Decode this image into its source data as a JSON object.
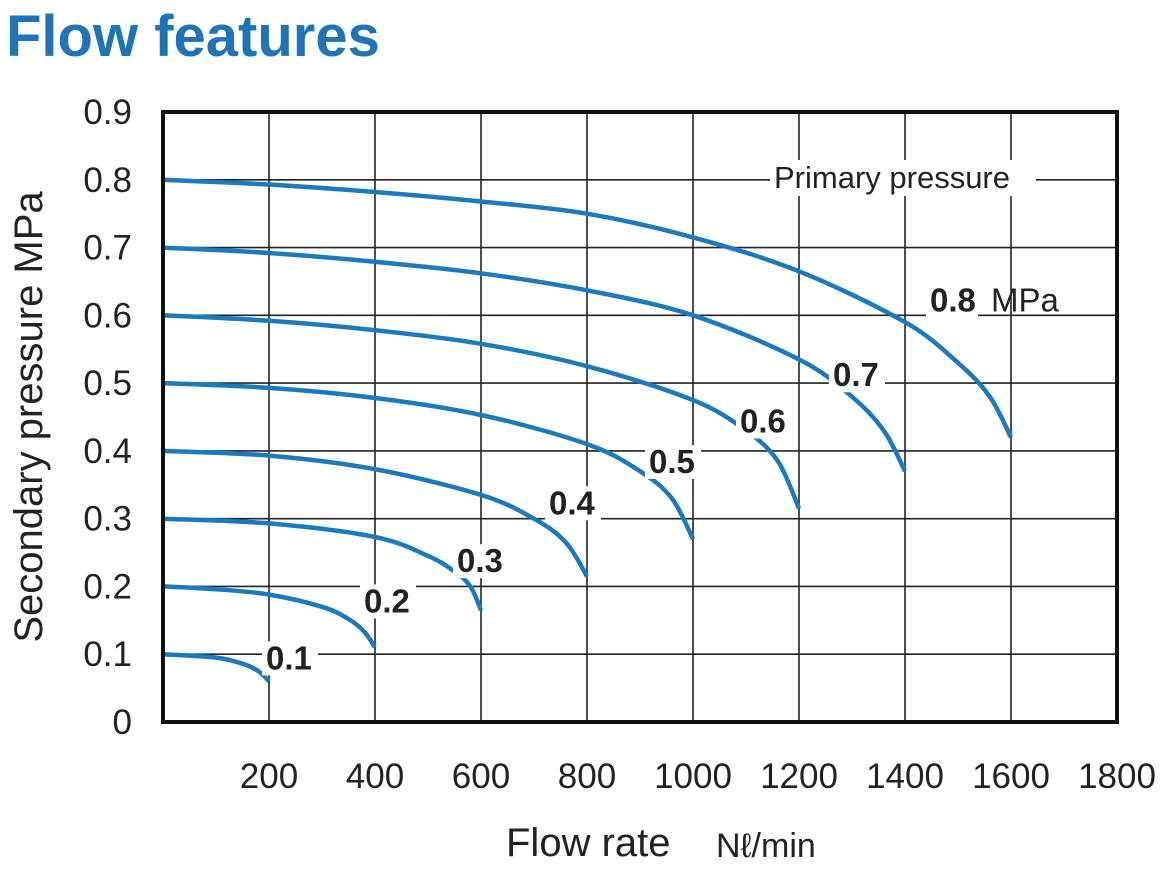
{
  "title": "Flow features",
  "chart_data": {
    "type": "line",
    "title": "Flow features",
    "xlabel": "Flow rate",
    "xlabel_unit": "Nℓ/min",
    "ylabel": "Secondary pressure  MPa",
    "xlim": [
      0,
      1800
    ],
    "ylim": [
      0,
      0.9
    ],
    "grid": true,
    "x_ticks": [
      "200",
      "400",
      "600",
      "800",
      "1000",
      "1200",
      "1400",
      "1600",
      "1800"
    ],
    "y_ticks": [
      "0",
      "0.1",
      "0.2",
      "0.3",
      "0.4",
      "0.5",
      "0.6",
      "0.7",
      "0.8",
      "0.9"
    ],
    "annotation": "Primary pressure",
    "line_color": "#1a7abf",
    "series": [
      {
        "name": "0.1",
        "x": [
          0,
          100,
          150,
          180,
          200
        ],
        "y": [
          0.1,
          0.095,
          0.086,
          0.075,
          0.06
        ]
      },
      {
        "name": "0.2",
        "x": [
          0,
          100,
          200,
          300,
          350,
          380,
          400
        ],
        "y": [
          0.2,
          0.196,
          0.188,
          0.17,
          0.152,
          0.133,
          0.11
        ]
      },
      {
        "name": "0.3",
        "x": [
          0,
          200,
          400,
          500,
          550,
          580,
          600
        ],
        "y": [
          0.3,
          0.293,
          0.273,
          0.245,
          0.222,
          0.2,
          0.165
        ]
      },
      {
        "name": "0.4",
        "x": [
          0,
          200,
          400,
          600,
          700,
          760,
          800
        ],
        "y": [
          0.4,
          0.393,
          0.373,
          0.335,
          0.3,
          0.265,
          0.215
        ]
      },
      {
        "name": "0.5",
        "x": [
          0,
          200,
          400,
          600,
          800,
          900,
          960,
          1000
        ],
        "y": [
          0.5,
          0.493,
          0.478,
          0.453,
          0.41,
          0.37,
          0.33,
          0.27
        ]
      },
      {
        "name": "0.6",
        "x": [
          0,
          200,
          400,
          600,
          800,
          1000,
          1100,
          1160,
          1200
        ],
        "y": [
          0.6,
          0.592,
          0.578,
          0.558,
          0.525,
          0.475,
          0.43,
          0.385,
          0.315
        ]
      },
      {
        "name": "0.7",
        "x": [
          0,
          200,
          400,
          600,
          800,
          1000,
          1200,
          1300,
          1360,
          1400
        ],
        "y": [
          0.7,
          0.692,
          0.679,
          0.662,
          0.637,
          0.6,
          0.535,
          0.48,
          0.43,
          0.37
        ]
      },
      {
        "name": "0.8",
        "x": [
          0,
          200,
          400,
          600,
          800,
          1000,
          1200,
          1400,
          1500,
          1560,
          1600
        ],
        "y": [
          0.8,
          0.793,
          0.782,
          0.768,
          0.75,
          0.715,
          0.665,
          0.59,
          0.53,
          0.48,
          0.42
        ]
      }
    ],
    "curve_labels": [
      "0.1",
      "0.2",
      "0.3",
      "0.4",
      "0.5",
      "0.6",
      "0.7",
      "0.8"
    ],
    "top_curve_unit": "MPa"
  }
}
